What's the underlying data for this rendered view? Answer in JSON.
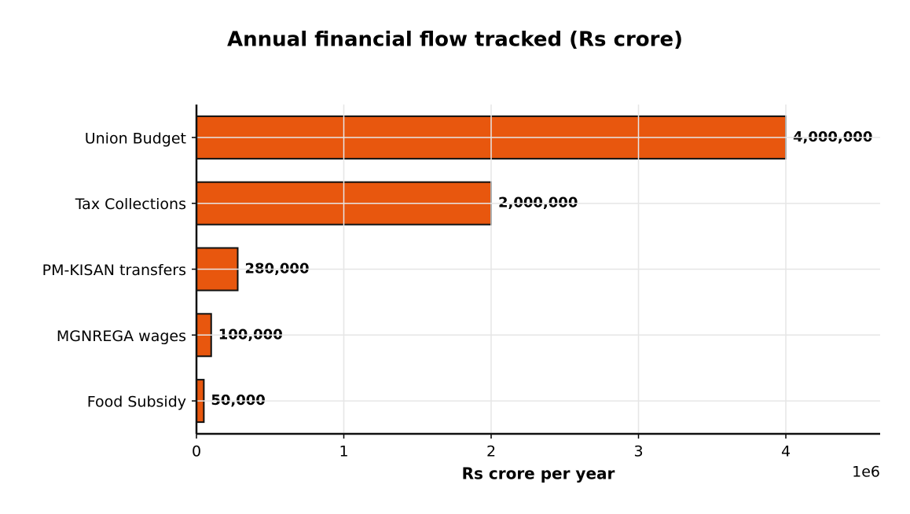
{
  "chart_data": {
    "type": "barh",
    "title": "Annual financial flow tracked (Rs crore)",
    "xlabel": "Rs crore per year",
    "x_offset_label": "1e6",
    "categories": [
      "Union Budget",
      "Tax Collections",
      "PM-KISAN transfers",
      "MGNREGA wages",
      "Food Subsidy"
    ],
    "values": [
      4000000,
      2000000,
      280000,
      100000,
      50000
    ],
    "value_labels": [
      "4,000,000",
      "2,000,000",
      "280,000",
      "100,000",
      "50,000"
    ],
    "color": "#e8570e",
    "xlim": [
      0,
      4640000
    ],
    "xticks": [
      0,
      {
        "value": 1000000,
        "label": "1"
      },
      {
        "value": 2000000,
        "label": "2"
      },
      {
        "value": 3000000,
        "label": "3"
      },
      {
        "value": 4000000,
        "label": "4"
      }
    ],
    "grid": true
  }
}
